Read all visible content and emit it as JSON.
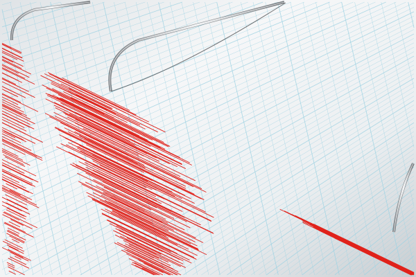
{
  "image": {
    "subject": "seismograph",
    "colors": {
      "paper": "#f2f4f5",
      "paper_shadow": "#c9ced2",
      "grid": "#9fd3e3",
      "trace": "#e0231c",
      "needle": "#b9bec3",
      "needle_dark": "#3a3d40"
    }
  }
}
